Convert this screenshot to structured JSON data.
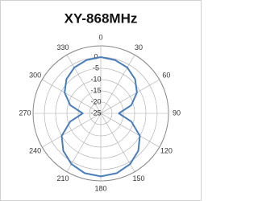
{
  "chart_data": {
    "type": "polar",
    "title": "XY-868MHz",
    "x": [
      0,
      15,
      30,
      45,
      60,
      75,
      90,
      105,
      120,
      135,
      150,
      165,
      180,
      195,
      210,
      225,
      240,
      255,
      270,
      285,
      300,
      315,
      330,
      345
    ],
    "series": [
      {
        "color": "#4a7ebb",
        "values": [
          0,
          -0.5,
          -1.5,
          -3.5,
          -6.5,
          -11,
          -17,
          -11,
          -5,
          -1.5,
          1,
          2.5,
          3,
          2.5,
          1,
          -1.5,
          -5,
          -11,
          -17,
          -11,
          -6.5,
          -3.5,
          -1.5,
          -0.5
        ]
      }
    ],
    "xticks": [
      0,
      30,
      60,
      90,
      120,
      150,
      180,
      210,
      240,
      270,
      300,
      330
    ],
    "ylim": [
      -25,
      5
    ],
    "yticks": [
      0,
      -5,
      -10,
      -15,
      -20,
      -25
    ],
    "grid": true
  }
}
